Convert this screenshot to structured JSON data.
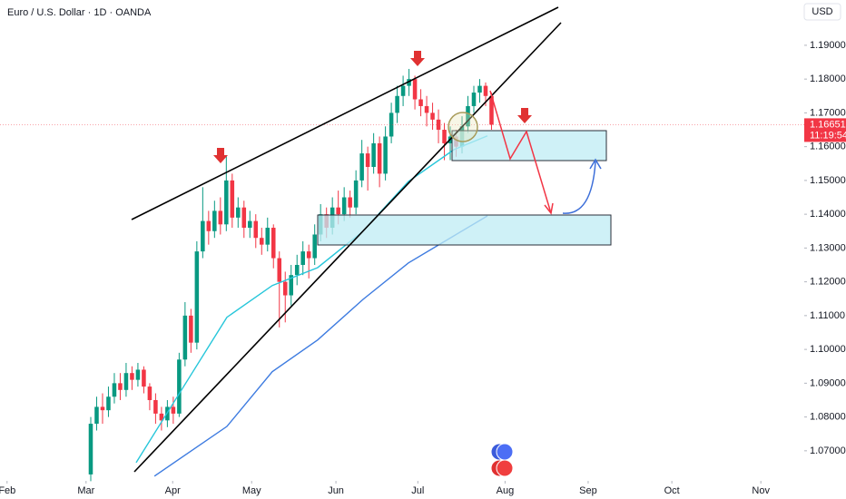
{
  "chart_data": {
    "type": "candlestick",
    "title": "Euro / U.S. Dollar · 1D · OANDA",
    "currency": "USD",
    "last_price": 1.16651,
    "countdown": "11:19:54",
    "up_color": "#089981",
    "down_color": "#f23645",
    "xlim": [
      -15.4,
      118.6
    ],
    "ylim": [
      1.0611,
      1.2034
    ],
    "xticks": [
      {
        "value": -14.2,
        "label": "Feb"
      },
      {
        "value": -0.8,
        "label": "Mar"
      },
      {
        "value": 13.9,
        "label": "Apr"
      },
      {
        "value": 27.3,
        "label": "May"
      },
      {
        "value": 41.6,
        "label": "Jun"
      },
      {
        "value": 55.5,
        "label": "Jul"
      },
      {
        "value": 70.3,
        "label": "Aug"
      },
      {
        "value": 84.4,
        "label": "Sep"
      },
      {
        "value": 98.6,
        "label": "Oct"
      },
      {
        "value": 113.7,
        "label": "Nov"
      }
    ],
    "yticks": [
      {
        "value": 1.19,
        "label": "1.19000"
      },
      {
        "value": 1.18,
        "label": "1.18000"
      },
      {
        "value": 1.17,
        "label": "1.17000"
      },
      {
        "value": 1.16,
        "label": "1.16000"
      },
      {
        "value": 1.15,
        "label": "1.15000"
      },
      {
        "value": 1.14,
        "label": "1.14000"
      },
      {
        "value": 1.13,
        "label": "1.13000"
      },
      {
        "value": 1.12,
        "label": "1.12000"
      },
      {
        "value": 1.11,
        "label": "1.11000"
      },
      {
        "value": 1.1,
        "label": "1.10000"
      },
      {
        "value": 1.09,
        "label": "1.09000"
      },
      {
        "value": 1.08,
        "label": "1.08000"
      },
      {
        "value": 1.07,
        "label": "1.07000"
      }
    ],
    "x": [
      0,
      1,
      2,
      3,
      4,
      5,
      6,
      7,
      8,
      9,
      10,
      11,
      12,
      13,
      14,
      15,
      16,
      17,
      18,
      19,
      20,
      21,
      22,
      23,
      24,
      25,
      26,
      27,
      28,
      29,
      30,
      31,
      32,
      33,
      34,
      35,
      36,
      37,
      38,
      39,
      40,
      41,
      42,
      43,
      44,
      45,
      46,
      47,
      48,
      49,
      50,
      51,
      52,
      53,
      54,
      55,
      56,
      57,
      58,
      59,
      60,
      61,
      62,
      63,
      64,
      65,
      66,
      67,
      68
    ],
    "open": [
      1.063,
      1.078,
      1.083,
      1.082,
      1.086,
      1.09,
      1.088,
      1.093,
      1.091,
      1.094,
      1.089,
      1.085,
      1.081,
      1.079,
      1.083,
      1.081,
      1.097,
      1.11,
      1.102,
      1.129,
      1.138,
      1.135,
      1.141,
      1.137,
      1.15,
      1.139,
      1.142,
      1.136,
      1.138,
      1.133,
      1.131,
      1.136,
      1.127,
      1.12,
      1.116,
      1.122,
      1.125,
      1.129,
      1.127,
      1.134,
      1.14,
      1.136,
      1.142,
      1.14,
      1.145,
      1.142,
      1.15,
      1.158,
      1.154,
      1.161,
      1.152,
      1.163,
      1.17,
      1.175,
      1.178,
      1.18,
      1.174,
      1.172,
      1.17,
      1.168,
      1.165,
      1.161,
      1.163,
      1.16,
      1.166,
      1.172,
      1.176,
      1.178,
      1.175
    ],
    "high": [
      1.08,
      1.086,
      1.087,
      1.089,
      1.093,
      1.093,
      1.096,
      1.095,
      1.096,
      1.095,
      1.09,
      1.087,
      1.083,
      1.085,
      1.086,
      1.099,
      1.114,
      1.112,
      1.132,
      1.148,
      1.141,
      1.144,
      1.145,
      1.1575,
      1.152,
      1.145,
      1.144,
      1.141,
      1.14,
      1.136,
      1.139,
      1.137,
      1.129,
      1.123,
      1.125,
      1.128,
      1.132,
      1.131,
      1.137,
      1.143,
      1.142,
      1.145,
      1.147,
      1.148,
      1.147,
      1.153,
      1.162,
      1.16,
      1.164,
      1.163,
      1.166,
      1.173,
      1.178,
      1.181,
      1.183,
      1.181,
      1.177,
      1.175,
      1.173,
      1.171,
      1.167,
      1.166,
      1.165,
      1.169,
      1.175,
      1.178,
      1.18,
      1.179,
      1.176
    ],
    "low": [
      1.061,
      1.076,
      1.078,
      1.08,
      1.084,
      1.085,
      1.086,
      1.088,
      1.089,
      1.087,
      1.082,
      1.078,
      1.076,
      1.077,
      1.078,
      1.08,
      1.095,
      1.099,
      1.1,
      1.127,
      1.131,
      1.133,
      1.134,
      1.135,
      1.136,
      1.136,
      1.133,
      1.133,
      1.13,
      1.128,
      1.129,
      1.124,
      1.1065,
      1.108,
      1.113,
      1.119,
      1.122,
      1.121,
      1.125,
      1.132,
      1.133,
      1.134,
      1.137,
      1.138,
      1.139,
      1.14,
      1.148,
      1.147,
      1.152,
      1.148,
      1.15,
      1.161,
      1.167,
      1.172,
      1.175,
      1.171,
      1.169,
      1.166,
      1.165,
      1.161,
      1.156,
      1.156,
      1.157,
      1.158,
      1.164,
      1.17,
      1.173,
      1.172,
      1.165
    ],
    "close": [
      1.078,
      1.083,
      1.082,
      1.086,
      1.09,
      1.088,
      1.093,
      1.091,
      1.094,
      1.089,
      1.085,
      1.081,
      1.079,
      1.083,
      1.081,
      1.097,
      1.11,
      1.102,
      1.129,
      1.138,
      1.135,
      1.141,
      1.137,
      1.15,
      1.139,
      1.142,
      1.136,
      1.138,
      1.133,
      1.131,
      1.136,
      1.127,
      1.12,
      1.116,
      1.122,
      1.125,
      1.129,
      1.127,
      1.134,
      1.14,
      1.136,
      1.142,
      1.14,
      1.145,
      1.142,
      1.15,
      1.158,
      1.154,
      1.161,
      1.152,
      1.163,
      1.17,
      1.175,
      1.178,
      1.18,
      1.174,
      1.172,
      1.17,
      1.168,
      1.165,
      1.161,
      1.163,
      1.16,
      1.166,
      1.172,
      1.176,
      1.178,
      1.175,
      1.1665
    ],
    "lines": [
      {
        "color": "#26c6da",
        "x": [
          7.7,
          15.4,
          23.1,
          30.8,
          38.5,
          46.2,
          53.9,
          61.6,
          67.3
        ],
        "values": [
          1.0665,
          1.088,
          1.1095,
          1.1189,
          1.1242,
          1.135,
          1.1497,
          1.1591,
          1.1632
        ]
      },
      {
        "color": "#3d7be0",
        "x": [
          10.8,
          23.1,
          30.8,
          38.5,
          46.2,
          53.9,
          61.6,
          67.3
        ],
        "values": [
          1.0625,
          1.0772,
          1.0934,
          1.1028,
          1.1148,
          1.1256,
          1.1336,
          1.1395
        ]
      }
    ]
  }
}
